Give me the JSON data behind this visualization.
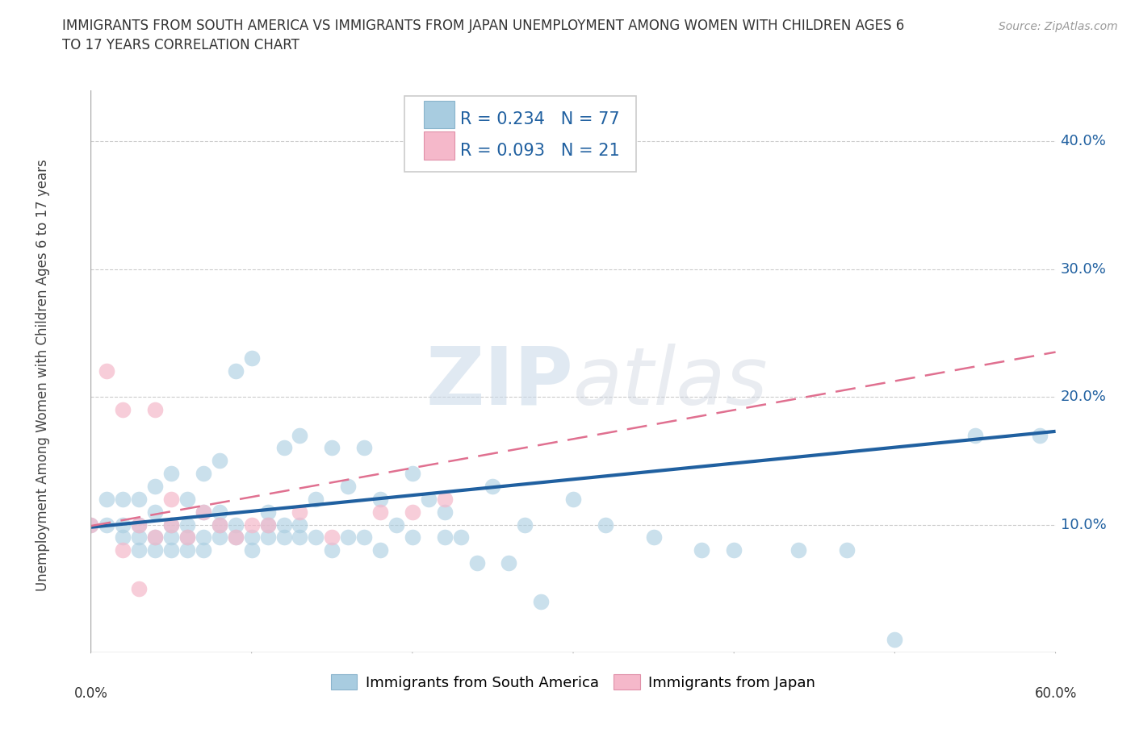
{
  "title": "IMMIGRANTS FROM SOUTH AMERICA VS IMMIGRANTS FROM JAPAN UNEMPLOYMENT AMONG WOMEN WITH CHILDREN AGES 6\nTO 17 YEARS CORRELATION CHART",
  "source": "Source: ZipAtlas.com",
  "ylabel": "Unemployment Among Women with Children Ages 6 to 17 years",
  "ylabel_right_ticks": [
    "10.0%",
    "20.0%",
    "30.0%",
    "40.0%"
  ],
  "ylabel_right_values": [
    0.1,
    0.2,
    0.3,
    0.4
  ],
  "xmin": 0.0,
  "xmax": 0.6,
  "ymin": 0.0,
  "ymax": 0.44,
  "series1_color": "#a8cce0",
  "series2_color": "#f5b8ca",
  "series1_line_color": "#2060a0",
  "series2_line_color": "#e07090",
  "series1_label": "Immigrants from South America",
  "series2_label": "Immigrants from Japan",
  "watermark": "ZIPatlas",
  "background_color": "#ffffff",
  "grid_color": "#cccccc",
  "sa_x": [
    0.0,
    0.01,
    0.01,
    0.02,
    0.02,
    0.02,
    0.03,
    0.03,
    0.03,
    0.03,
    0.04,
    0.04,
    0.04,
    0.04,
    0.05,
    0.05,
    0.05,
    0.05,
    0.06,
    0.06,
    0.06,
    0.06,
    0.07,
    0.07,
    0.07,
    0.07,
    0.08,
    0.08,
    0.08,
    0.08,
    0.09,
    0.09,
    0.09,
    0.1,
    0.1,
    0.1,
    0.11,
    0.11,
    0.11,
    0.12,
    0.12,
    0.12,
    0.13,
    0.13,
    0.13,
    0.14,
    0.14,
    0.15,
    0.15,
    0.16,
    0.16,
    0.17,
    0.17,
    0.18,
    0.18,
    0.19,
    0.2,
    0.2,
    0.21,
    0.22,
    0.22,
    0.23,
    0.24,
    0.25,
    0.26,
    0.27,
    0.28,
    0.3,
    0.32,
    0.35,
    0.38,
    0.4,
    0.44,
    0.47,
    0.5,
    0.55,
    0.59
  ],
  "sa_y": [
    0.1,
    0.1,
    0.12,
    0.09,
    0.1,
    0.12,
    0.08,
    0.09,
    0.1,
    0.12,
    0.08,
    0.09,
    0.11,
    0.13,
    0.08,
    0.09,
    0.1,
    0.14,
    0.08,
    0.09,
    0.1,
    0.12,
    0.08,
    0.09,
    0.11,
    0.14,
    0.09,
    0.1,
    0.11,
    0.15,
    0.09,
    0.1,
    0.22,
    0.08,
    0.09,
    0.23,
    0.09,
    0.1,
    0.11,
    0.09,
    0.1,
    0.16,
    0.09,
    0.1,
    0.17,
    0.09,
    0.12,
    0.08,
    0.16,
    0.09,
    0.13,
    0.09,
    0.16,
    0.08,
    0.12,
    0.1,
    0.09,
    0.14,
    0.12,
    0.09,
    0.11,
    0.09,
    0.07,
    0.13,
    0.07,
    0.1,
    0.04,
    0.12,
    0.1,
    0.09,
    0.08,
    0.08,
    0.08,
    0.08,
    0.01,
    0.17,
    0.17
  ],
  "jp_x": [
    0.0,
    0.01,
    0.02,
    0.02,
    0.03,
    0.03,
    0.04,
    0.04,
    0.05,
    0.05,
    0.06,
    0.07,
    0.08,
    0.09,
    0.1,
    0.11,
    0.13,
    0.15,
    0.18,
    0.2,
    0.22
  ],
  "jp_y": [
    0.1,
    0.22,
    0.08,
    0.19,
    0.05,
    0.1,
    0.09,
    0.19,
    0.1,
    0.12,
    0.09,
    0.11,
    0.1,
    0.09,
    0.1,
    0.1,
    0.11,
    0.09,
    0.11,
    0.11,
    0.12
  ]
}
